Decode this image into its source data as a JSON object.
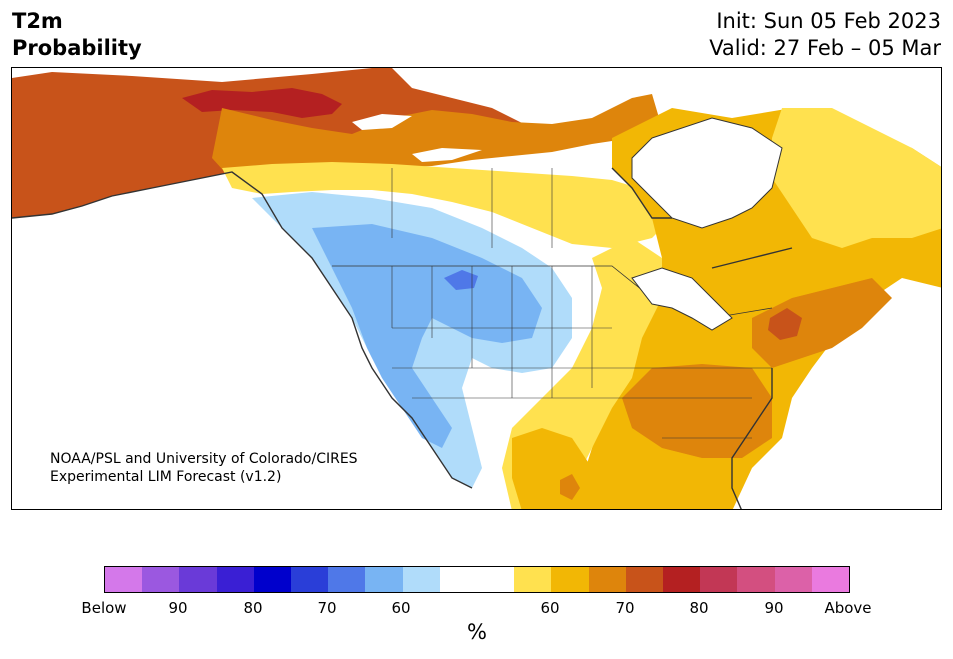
{
  "header": {
    "title_line1": "T2m",
    "title_line2": "Probability",
    "init_label": "Init: Sun 05 Feb 2023",
    "valid_label": "Valid: 27 Feb – 05 Mar"
  },
  "map": {
    "credit_line1": "NOAA/PSL and University of Colorado/CIRES",
    "credit_line2": "Experimental LIM Forecast (v1.2)",
    "colors": {
      "land_outline": "#333333",
      "above_60": "#ffe14f",
      "above_70": "#f2b705",
      "above_80": "#de850c",
      "above_90": "#c8531a",
      "above_high": "#b42021",
      "below_60": "#b0dcfa",
      "below_70": "#78b4f3",
      "below_80": "#4f78e8",
      "neutral": "#ffffff"
    }
  },
  "colorbar": {
    "colors": [
      "#d478ea",
      "#9b58e0",
      "#6a3ad8",
      "#3a1fd4",
      "#0000cc",
      "#2a3ed8",
      "#4f78e8",
      "#78b4f3",
      "#b0dcfa",
      "#ffffff",
      "#ffffff",
      "#ffe14f",
      "#f2b705",
      "#de850c",
      "#c8531a",
      "#b42021",
      "#c23755",
      "#d34f80",
      "#dc61a8",
      "#ea7adf"
    ],
    "labels": [
      "Below",
      "90",
      "80",
      "70",
      "60",
      "60",
      "70",
      "80",
      "90",
      "Above"
    ],
    "unit": "%"
  }
}
